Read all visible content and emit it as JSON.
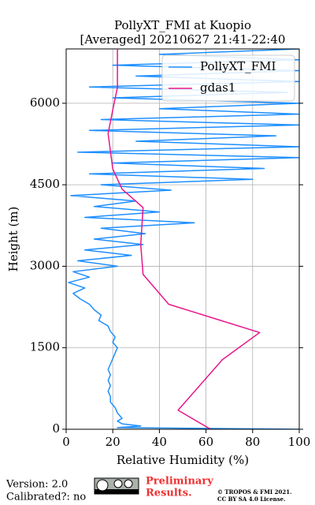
{
  "chart_data": {
    "type": "line",
    "title": "PollyXT_FMI at Kuopio",
    "subtitle": "[Averaged] 20210627 21:41-22:40",
    "x_label": "Relative Humidity (%)",
    "y_label": "Height (m)",
    "xlim": [
      0,
      100
    ],
    "xticks": [
      0,
      20,
      40,
      60,
      80,
      100
    ],
    "ylim": [
      0,
      7000
    ],
    "yticks": [
      0,
      1500,
      3000,
      4500,
      6000
    ],
    "grid": true,
    "legend": "upper right",
    "series": [
      {
        "name": "PollyXT_FMI",
        "color": "#1e8fff",
        "x": [
          100,
          22,
          32,
          24,
          22,
          24,
          22,
          21,
          19,
          19,
          18,
          19,
          18,
          19,
          18,
          19,
          20,
          21,
          22,
          20,
          21,
          19,
          18,
          14,
          15,
          12,
          10,
          6,
          3,
          8,
          1,
          10,
          3,
          22,
          5,
          28,
          8,
          33,
          12,
          34,
          15,
          55,
          8,
          40,
          12,
          30,
          2,
          45,
          15,
          80,
          10,
          85,
          20,
          100,
          5,
          100,
          30,
          90,
          10,
          100,
          15,
          100,
          40,
          100,
          20,
          95,
          10,
          100,
          30,
          100,
          20,
          100,
          40,
          100
        ],
        "values": [
          0,
          30,
          60,
          100,
          150,
          200,
          300,
          400,
          500,
          600,
          700,
          800,
          900,
          1000,
          1100,
          1200,
          1300,
          1400,
          1500,
          1600,
          1700,
          1800,
          1900,
          2000,
          2100,
          2200,
          2300,
          2400,
          2500,
          2600,
          2700,
          2800,
          2900,
          3000,
          3100,
          3200,
          3300,
          3400,
          3500,
          3600,
          3700,
          3800,
          3900,
          4000,
          4100,
          4200,
          4300,
          4400,
          4500,
          4600,
          4700,
          4800,
          4900,
          5000,
          5100,
          5200,
          5300,
          5400,
          5500,
          5600,
          5700,
          5800,
          5900,
          6000,
          6100,
          6200,
          6300,
          6400,
          6500,
          6600,
          6700,
          6800,
          6900,
          7000
        ]
      },
      {
        "name": "gdas1",
        "color": "#e8168a",
        "x": [
          62,
          48,
          57,
          67,
          83,
          44,
          33,
          32,
          33,
          24,
          20,
          18,
          20,
          22,
          22
        ],
        "values": [
          0,
          350,
          790,
          1280,
          1780,
          2300,
          2850,
          3400,
          4080,
          4420,
          4790,
          5440,
          5880,
          6290,
          6990
        ]
      }
    ]
  },
  "footer": {
    "version": "Version: 2.0",
    "calibrated": "Calibrated?: no",
    "status": [
      "Preliminary",
      "Results."
    ],
    "license": [
      "© TROPOS & FMI 2021.",
      "CC BY SA 4.0 License."
    ]
  }
}
